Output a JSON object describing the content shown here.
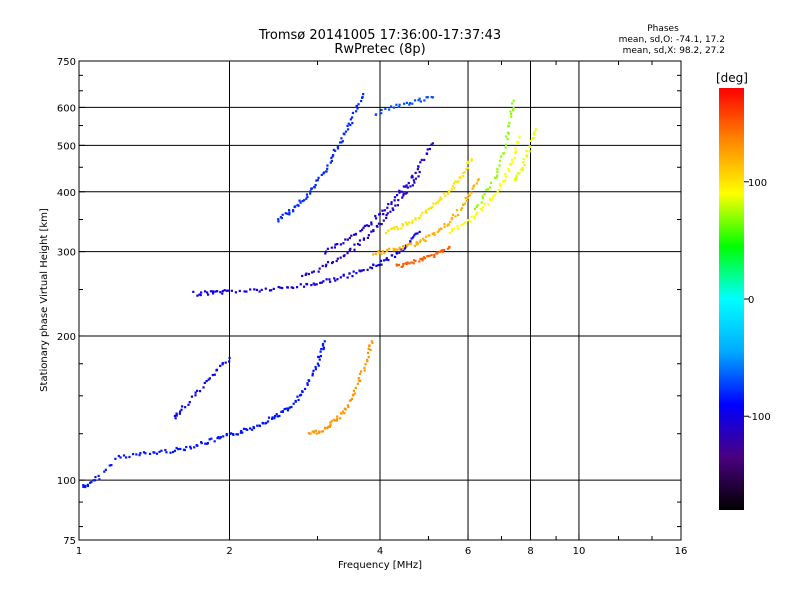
{
  "chart_data": {
    "type": "scatter",
    "title": "Tromsø 20141005 17:36:00-17:37:43",
    "subtitle": "RwPretec (8p)",
    "xlabel": "Frequency [MHz]",
    "ylabel": "Stationary phase Virtual Height [km]",
    "x_scale": "log",
    "y_scale": "log",
    "xlim": [
      1,
      16
    ],
    "ylim": [
      75,
      750
    ],
    "x_ticks": [
      "1",
      "2",
      "4",
      "6",
      "8",
      "10",
      "16"
    ],
    "x_tick_values": [
      1,
      2,
      4,
      6,
      8,
      10,
      16
    ],
    "x_gridlines": [
      2,
      4,
      6,
      8,
      10
    ],
    "y_ticks": [
      "75",
      "100",
      "200",
      "300",
      "400",
      "500",
      "600",
      "750"
    ],
    "y_tick_values": [
      75,
      100,
      200,
      300,
      400,
      500,
      600,
      750
    ],
    "y_gridlines": [
      100,
      200,
      300,
      400,
      500,
      600
    ],
    "grid": true,
    "stats": {
      "heading": "Phases",
      "line_o": "mean, sd,O: -74.1, 17.2",
      "line_x": "mean, sd,X:  98.2, 27.2"
    },
    "colorbar": {
      "label": "[deg]",
      "ticks": [
        "100",
        "0",
        "-100"
      ],
      "tick_values": [
        100,
        0,
        -100
      ],
      "range": [
        -180,
        180
      ],
      "colors": [
        "#000000",
        "#4a0080",
        "#0000ff",
        "#00aaff",
        "#00ffff",
        "#00ff00",
        "#ffff00",
        "#ff8800",
        "#ff0000"
      ]
    },
    "traces": [
      {
        "name": "",
        "phase": -85,
        "points": [
          [
            1.02,
            97
          ],
          [
            1.05,
            98
          ],
          [
            1.1,
            102
          ],
          [
            1.2,
            112
          ],
          [
            1.3,
            113
          ],
          [
            1.4,
            114
          ],
          [
            1.5,
            115
          ],
          [
            1.6,
            116
          ],
          [
            1.7,
            118
          ],
          [
            1.8,
            120
          ],
          [
            1.9,
            122
          ],
          [
            2.0,
            124
          ],
          [
            2.1,
            126
          ],
          [
            2.2,
            128
          ],
          [
            2.3,
            131
          ],
          [
            2.4,
            134
          ],
          [
            2.5,
            137
          ],
          [
            2.6,
            140
          ],
          [
            2.7,
            145
          ],
          [
            2.8,
            152
          ],
          [
            2.9,
            162
          ],
          [
            3.0,
            175
          ],
          [
            3.05,
            185
          ],
          [
            3.1,
            195
          ]
        ]
      },
      {
        "name": "",
        "phase": -95,
        "points": [
          [
            1.55,
            135
          ],
          [
            1.6,
            140
          ],
          [
            1.7,
            150
          ],
          [
            1.8,
            160
          ],
          [
            1.9,
            170
          ],
          [
            2.0,
            180
          ]
        ]
      },
      {
        "name": "",
        "phase": -100,
        "points": [
          [
            1.7,
            245
          ],
          [
            1.8,
            246
          ],
          [
            1.9,
            247
          ],
          [
            2.0,
            248
          ],
          [
            2.2,
            249
          ],
          [
            2.4,
            250
          ],
          [
            2.6,
            252
          ],
          [
            2.8,
            255
          ],
          [
            3.0,
            258
          ],
          [
            3.2,
            262
          ],
          [
            3.4,
            266
          ],
          [
            3.6,
            271
          ],
          [
            3.8,
            277
          ],
          [
            4.0,
            284
          ],
          [
            4.2,
            292
          ],
          [
            4.4,
            302
          ],
          [
            4.6,
            315
          ],
          [
            4.8,
            330
          ]
        ]
      },
      {
        "name": "",
        "phase": -110,
        "points": [
          [
            2.8,
            265
          ],
          [
            3.0,
            275
          ],
          [
            3.2,
            285
          ],
          [
            3.4,
            297
          ],
          [
            3.6,
            310
          ],
          [
            3.8,
            325
          ],
          [
            4.0,
            342
          ],
          [
            4.2,
            362
          ],
          [
            4.4,
            386
          ],
          [
            4.6,
            410
          ],
          [
            4.8,
            440
          ]
        ]
      },
      {
        "name": "",
        "phase": -105,
        "points": [
          [
            3.1,
            300
          ],
          [
            3.3,
            310
          ],
          [
            3.5,
            322
          ],
          [
            3.7,
            335
          ],
          [
            3.9,
            350
          ],
          [
            4.1,
            367
          ],
          [
            4.3,
            388
          ],
          [
            4.5,
            412
          ],
          [
            4.7,
            440
          ],
          [
            4.9,
            470
          ],
          [
            5.1,
            505
          ]
        ]
      },
      {
        "name": "",
        "phase": -80,
        "points": [
          [
            2.5,
            350
          ],
          [
            2.6,
            360
          ],
          [
            2.7,
            370
          ],
          [
            2.8,
            385
          ],
          [
            2.9,
            400
          ],
          [
            3.0,
            420
          ],
          [
            3.1,
            440
          ],
          [
            3.2,
            470
          ],
          [
            3.3,
            500
          ],
          [
            3.4,
            530
          ],
          [
            3.5,
            560
          ],
          [
            3.6,
            600
          ],
          [
            3.7,
            640
          ]
        ]
      },
      {
        "name": "",
        "phase": -70,
        "points": [
          [
            3.9,
            580
          ],
          [
            4.2,
            600
          ],
          [
            4.5,
            610
          ],
          [
            4.8,
            620
          ],
          [
            5.1,
            630
          ]
        ]
      },
      {
        "name": "",
        "phase": 130,
        "points": [
          [
            2.9,
            125
          ],
          [
            3.0,
            126
          ],
          [
            3.1,
            128
          ],
          [
            3.2,
            131
          ],
          [
            3.3,
            135
          ],
          [
            3.4,
            140
          ],
          [
            3.5,
            148
          ],
          [
            3.6,
            158
          ],
          [
            3.7,
            170
          ],
          [
            3.8,
            185
          ],
          [
            3.85,
            195
          ]
        ]
      },
      {
        "name": "",
        "phase": 120,
        "points": [
          [
            3.9,
            298
          ],
          [
            4.1,
            300
          ],
          [
            4.3,
            303
          ],
          [
            4.5,
            307
          ],
          [
            4.7,
            312
          ],
          [
            4.9,
            318
          ],
          [
            5.1,
            325
          ],
          [
            5.3,
            334
          ],
          [
            5.5,
            345
          ],
          [
            5.7,
            360
          ],
          [
            5.9,
            378
          ],
          [
            6.1,
            400
          ],
          [
            6.3,
            425
          ]
        ]
      },
      {
        "name": "",
        "phase": 150,
        "points": [
          [
            4.3,
            280
          ],
          [
            4.5,
            283
          ],
          [
            4.7,
            286
          ],
          [
            4.9,
            290
          ],
          [
            5.1,
            295
          ],
          [
            5.3,
            300
          ],
          [
            5.5,
            306
          ]
        ]
      },
      {
        "name": "",
        "phase": 100,
        "points": [
          [
            4.1,
            330
          ],
          [
            4.3,
            335
          ],
          [
            4.5,
            342
          ],
          [
            4.7,
            350
          ],
          [
            4.9,
            360
          ],
          [
            5.1,
            372
          ],
          [
            5.3,
            386
          ],
          [
            5.5,
            402
          ],
          [
            5.7,
            420
          ],
          [
            5.9,
            442
          ],
          [
            6.1,
            468
          ]
        ]
      },
      {
        "name": "",
        "phase": 90,
        "points": [
          [
            5.5,
            330
          ],
          [
            5.8,
            340
          ],
          [
            6.1,
            352
          ],
          [
            6.4,
            368
          ],
          [
            6.7,
            388
          ],
          [
            7.0,
            412
          ],
          [
            7.2,
            440
          ],
          [
            7.4,
            475
          ],
          [
            7.6,
            520
          ]
        ]
      },
      {
        "name": "",
        "phase": 70,
        "points": [
          [
            6.2,
            370
          ],
          [
            6.5,
            395
          ],
          [
            6.8,
            430
          ],
          [
            7.0,
            470
          ],
          [
            7.2,
            520
          ],
          [
            7.3,
            570
          ],
          [
            7.4,
            620
          ]
        ]
      },
      {
        "name": "",
        "phase": 85,
        "points": [
          [
            7.4,
            420
          ],
          [
            7.6,
            440
          ],
          [
            7.8,
            465
          ],
          [
            8.0,
            500
          ],
          [
            8.2,
            540
          ]
        ]
      }
    ]
  }
}
